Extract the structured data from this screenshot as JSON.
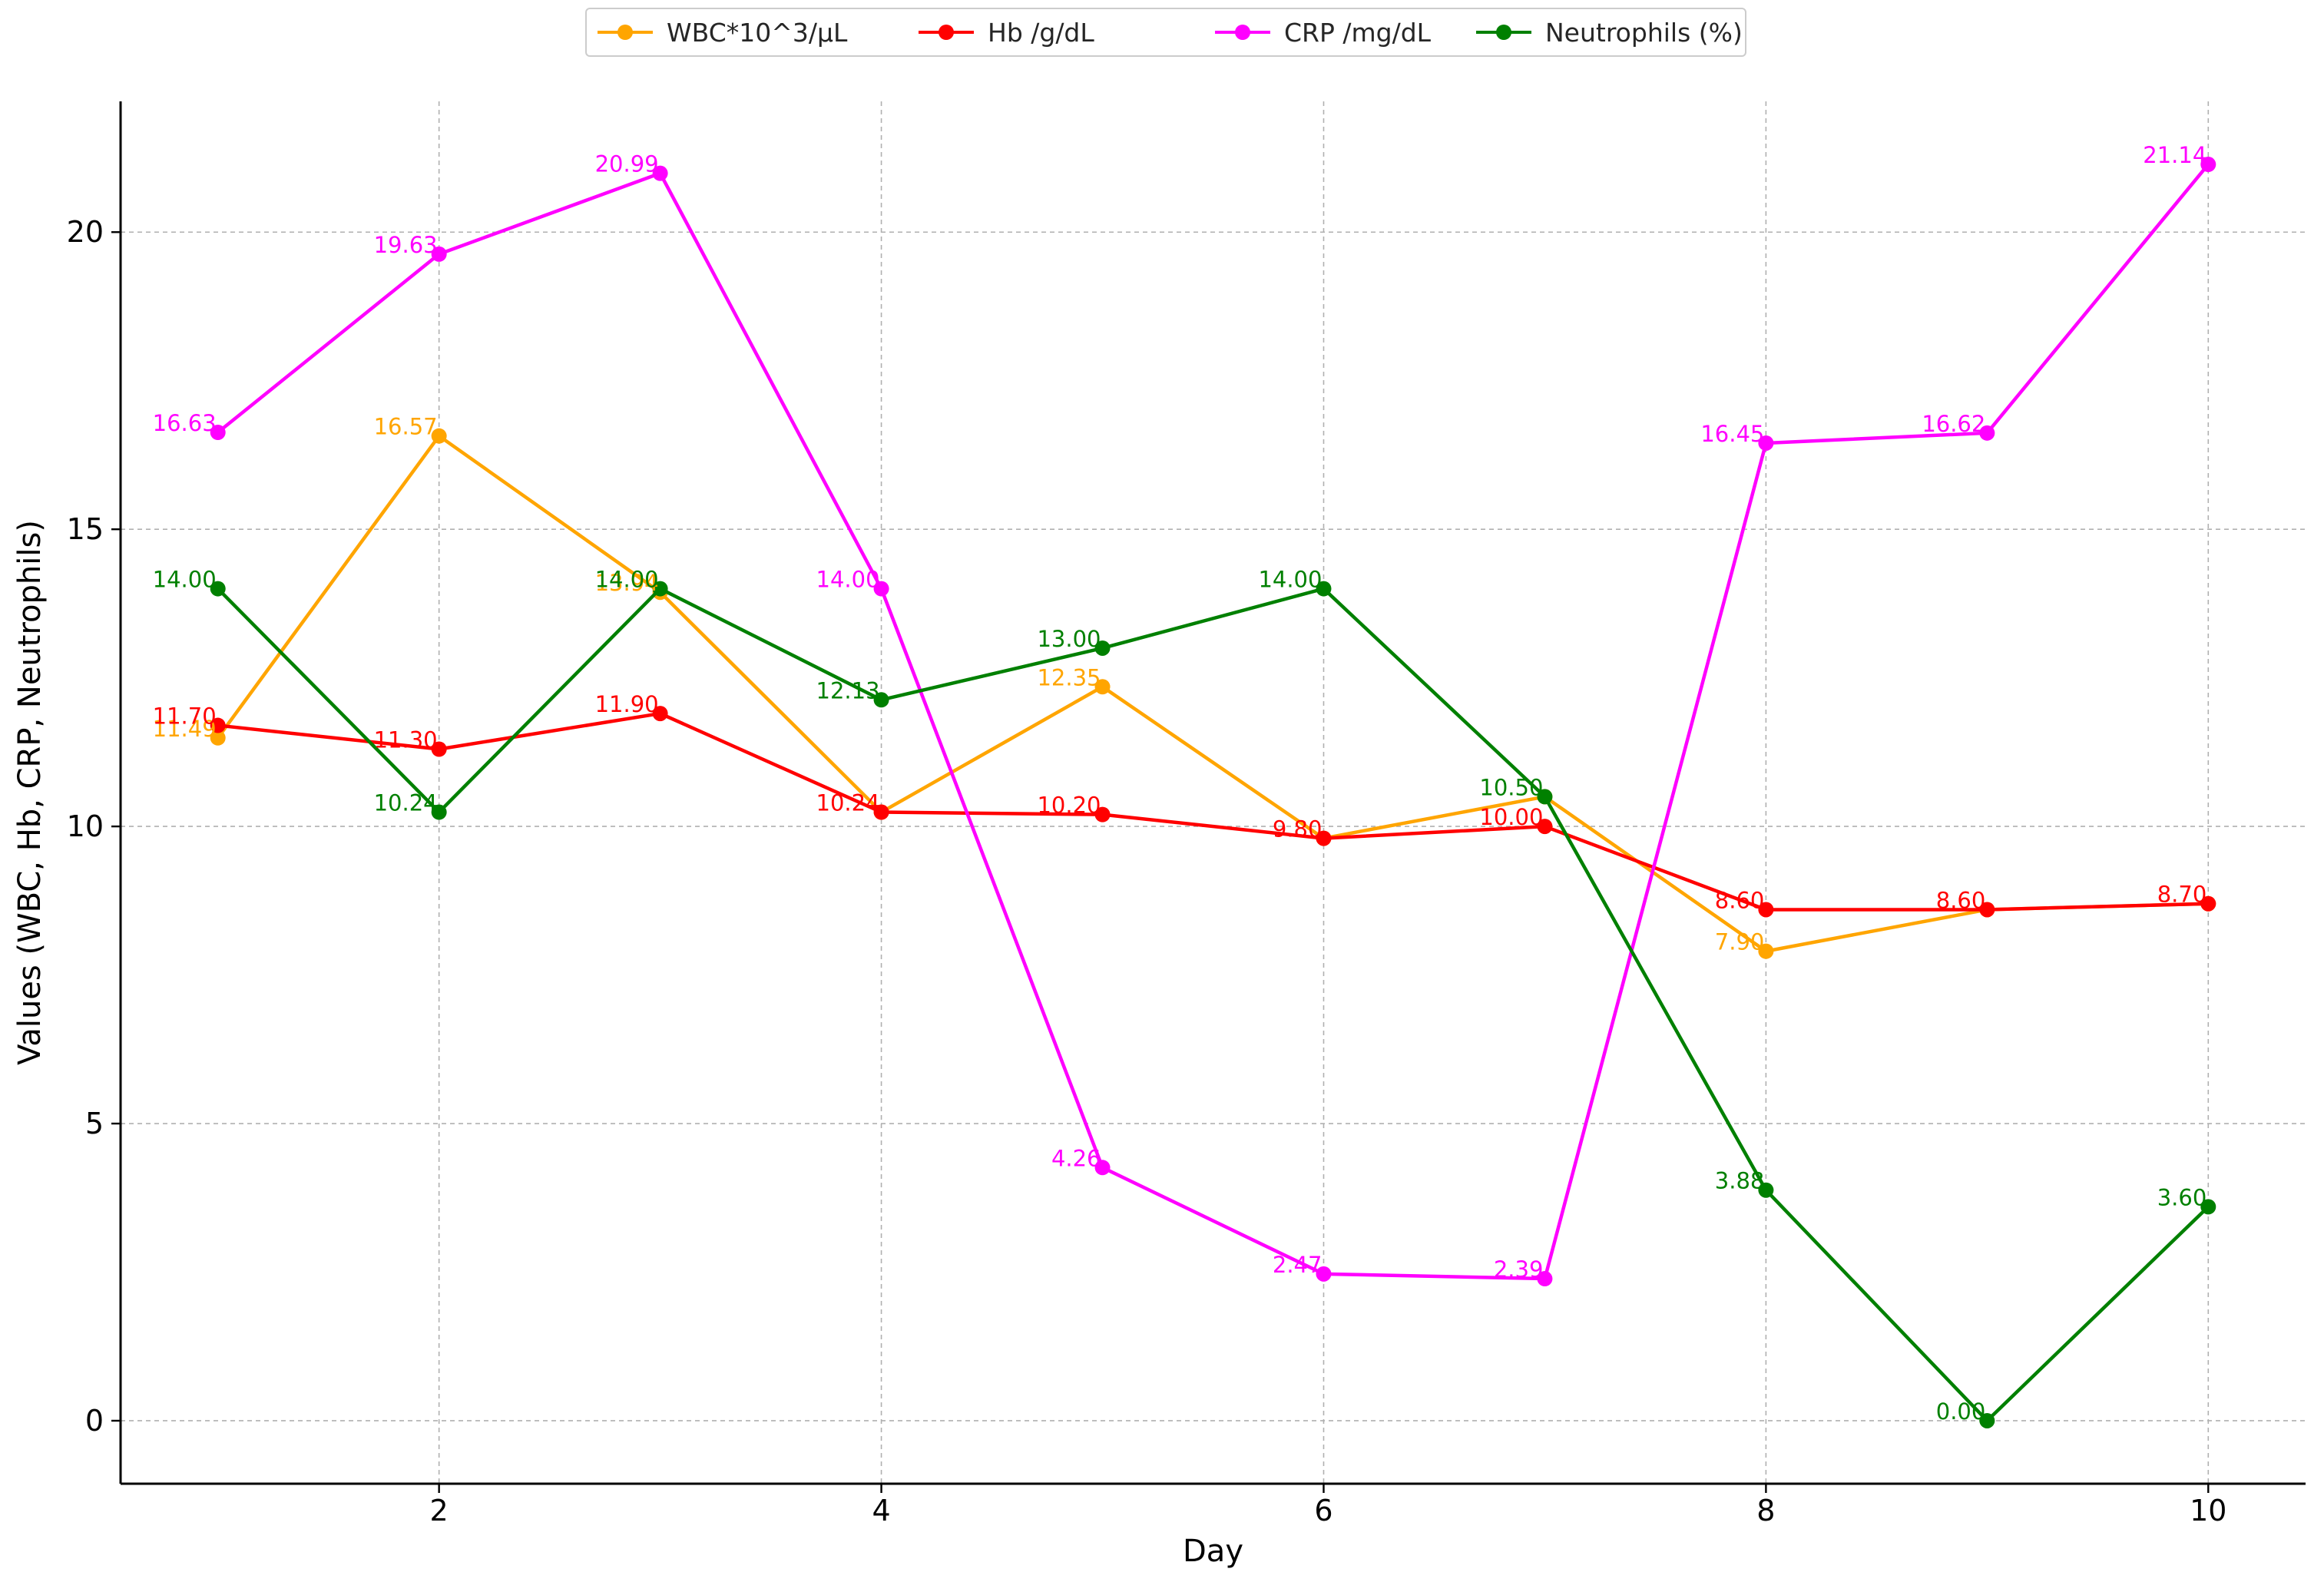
{
  "chart_data": {
    "type": "line",
    "xlabel": "Day",
    "ylabel": "Values (WBC, Hb, CRP, Neutrophils)",
    "x": [
      1,
      2,
      3,
      4,
      5,
      6,
      7,
      8,
      9,
      10
    ],
    "xlim": [
      0.56,
      10.44
    ],
    "ylim": [
      -1.06,
      22.2
    ],
    "xticks": [
      2,
      4,
      6,
      8,
      10
    ],
    "yticks": [
      0,
      5,
      10,
      15,
      20
    ],
    "grid": true,
    "legend_position": "top-center",
    "series": [
      {
        "name": "WBC*10^3/µL",
        "color": "#ffa500",
        "values": [
          11.49,
          16.57,
          13.94,
          10.24,
          12.35,
          9.8,
          10.5,
          7.9,
          8.6,
          8.7
        ],
        "labels": [
          "11.49",
          "16.57",
          "13.94",
          "",
          "12.35",
          "",
          "",
          "7.90",
          "",
          ""
        ]
      },
      {
        "name": "Hb /g/dL",
        "color": "#ff0000",
        "values": [
          11.7,
          11.3,
          11.9,
          10.24,
          10.2,
          9.8,
          10.0,
          8.6,
          8.6,
          8.7
        ],
        "labels": [
          "11.70",
          "11.30",
          "11.90",
          "10.24",
          "10.20",
          "9.80",
          "10.00",
          "8.60",
          "8.60",
          "8.70"
        ]
      },
      {
        "name": "CRP /mg/dL",
        "color": "#ff00ff",
        "values": [
          16.63,
          19.63,
          20.99,
          14.0,
          4.26,
          2.47,
          2.39,
          16.45,
          16.62,
          21.14
        ],
        "labels": [
          "16.63",
          "19.63",
          "20.99",
          "14.00",
          "4.26",
          "2.47",
          "2.39",
          "16.45",
          "16.62",
          "21.14"
        ]
      },
      {
        "name": "Neutrophils (%)",
        "color": "#008000",
        "values": [
          14.0,
          10.24,
          14.0,
          12.13,
          13.0,
          14.0,
          10.5,
          3.88,
          0.0,
          3.6
        ],
        "labels": [
          "14.00",
          "10.24",
          "14.00",
          "12.13",
          "13.00",
          "14.00",
          "10.50",
          "3.88",
          "0.00",
          "3.60"
        ]
      }
    ]
  }
}
